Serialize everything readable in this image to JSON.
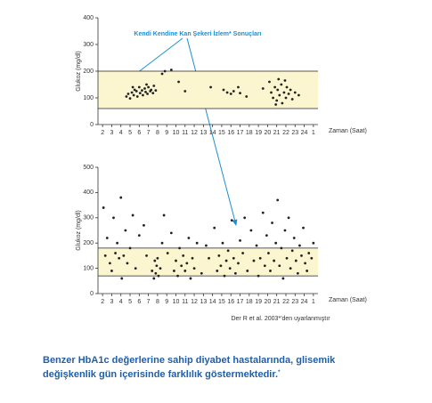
{
  "chart_data": [
    {
      "type": "scatter",
      "y_label": "Glukoz (mg/dl)",
      "x_label": "Zaman (Saat)",
      "annotation": "Kendi Kendine Kan Şekeri İzlem* Sonuçları",
      "color": "#222222",
      "band": [
        60,
        200
      ],
      "band_color": "#fbf6cf",
      "xlim": [
        1.5,
        25.5
      ],
      "ylim": [
        0,
        400
      ],
      "xticks": [
        2,
        3,
        4,
        5,
        6,
        7,
        8,
        9,
        10,
        11,
        12,
        13,
        14,
        15,
        16,
        17,
        18,
        19,
        20,
        21,
        22,
        23,
        24,
        {
          "value": 25,
          "label": "1"
        }
      ],
      "yticks": [
        0,
        100,
        200,
        300,
        400
      ],
      "x": [
        4.6,
        4.8,
        5,
        5.2,
        5.4,
        5.5,
        5.7,
        5.8,
        6,
        6.1,
        6.3,
        6.4,
        6.6,
        6.7,
        6.9,
        7,
        7.2,
        7.3,
        7.5,
        7.6,
        7.8,
        5.3,
        6.8,
        8.5,
        9.5,
        8.8,
        10.3,
        11,
        13.8,
        15.2,
        15.6,
        16,
        16.3,
        16.8,
        17,
        17.7,
        19.5,
        20.2,
        20.4,
        20.6,
        20.8,
        21,
        21.1,
        21.3,
        21.5,
        21.6,
        21.8,
        22,
        22.1,
        22.3,
        22.5,
        22.7,
        23,
        23.4,
        21.2,
        20.9,
        21.9
      ],
      "y": [
        105,
        115,
        98,
        120,
        110,
        130,
        125,
        105,
        140,
        118,
        128,
        110,
        135,
        122,
        115,
        140,
        125,
        130,
        118,
        145,
        128,
        140,
        150,
        190,
        205,
        200,
        160,
        125,
        140,
        130,
        120,
        115,
        125,
        140,
        118,
        105,
        135,
        160,
        120,
        100,
        140,
        90,
        130,
        110,
        150,
        80,
        120,
        100,
        140,
        115,
        130,
        95,
        120,
        110,
        170,
        75,
        165
      ]
    },
    {
      "type": "scatter",
      "y_label": "Glukoz (mg/dl)",
      "x_label": "Zaman (Saat)",
      "source": "Der R et al. 2003*'den uyarlanmıştır",
      "color": "#222222",
      "band": [
        70,
        180
      ],
      "band_color": "#fbf6cf",
      "xlim": [
        1.5,
        25.5
      ],
      "ylim": [
        0,
        500
      ],
      "xticks": [
        2,
        3,
        4,
        5,
        6,
        7,
        8,
        9,
        10,
        11,
        12,
        13,
        14,
        15,
        16,
        17,
        18,
        19,
        20,
        21,
        22,
        23,
        24,
        {
          "value": 25,
          "label": "1"
        }
      ],
      "yticks": [
        0,
        100,
        200,
        300,
        400,
        500
      ],
      "x": [
        2.1,
        2.3,
        2.5,
        2.8,
        3.0,
        3.2,
        3.4,
        3.6,
        3.8,
        4.0,
        4.1,
        4.3,
        4.5,
        4.7,
        5.0,
        5.3,
        5.6,
        6.0,
        6.5,
        6.8,
        7.4,
        7.6,
        7.7,
        7.8,
        7.9,
        8.0,
        8.1,
        8.3,
        8.5,
        8.7,
        9.1,
        9.5,
        9.8,
        10.0,
        10.2,
        10.4,
        10.6,
        10.8,
        11.0,
        11.2,
        11.4,
        11.6,
        11.8,
        12.0,
        12.3,
        12.8,
        13.3,
        13.6,
        14.2,
        14.5,
        14.7,
        14.9,
        15.1,
        15.3,
        15.5,
        15.7,
        15.9,
        16.1,
        16.3,
        16.5,
        16.8,
        17.0,
        17.3,
        17.5,
        17.8,
        18.2,
        18.5,
        18.8,
        19.0,
        19.2,
        19.5,
        19.7,
        19.9,
        20.1,
        20.3,
        20.5,
        20.7,
        20.9,
        21.1,
        21.3,
        21.5,
        21.7,
        21.9,
        22.1,
        22.3,
        22.5,
        22.7,
        22.9,
        23.1,
        23.3,
        23.5,
        23.7,
        23.9,
        24.1,
        24.3,
        24.5,
        24.8,
        25.0
      ],
      "y": [
        340,
        150,
        220,
        120,
        90,
        300,
        160,
        200,
        140,
        380,
        60,
        150,
        250,
        120,
        180,
        310,
        100,
        230,
        270,
        150,
        90,
        60,
        130,
        80,
        110,
        140,
        70,
        100,
        200,
        310,
        160,
        240,
        90,
        130,
        70,
        180,
        110,
        150,
        90,
        120,
        220,
        60,
        140,
        100,
        200,
        80,
        190,
        140,
        260,
        90,
        150,
        110,
        200,
        70,
        130,
        170,
        100,
        290,
        140,
        80,
        120,
        210,
        160,
        300,
        90,
        250,
        130,
        190,
        70,
        140,
        320,
        110,
        230,
        160,
        90,
        280,
        130,
        200,
        370,
        110,
        180,
        60,
        250,
        140,
        300,
        100,
        170,
        220,
        130,
        80,
        190,
        150,
        260,
        120,
        90,
        160,
        140,
        200
      ]
    }
  ],
  "caption": {
    "lines": [
      "Benzer HbA1c değerlerine sahip diyabet hastalarında, glisemik",
      "değişkenlik gün içerisinde farklılık göstermektedir."
    ],
    "note": "*"
  }
}
